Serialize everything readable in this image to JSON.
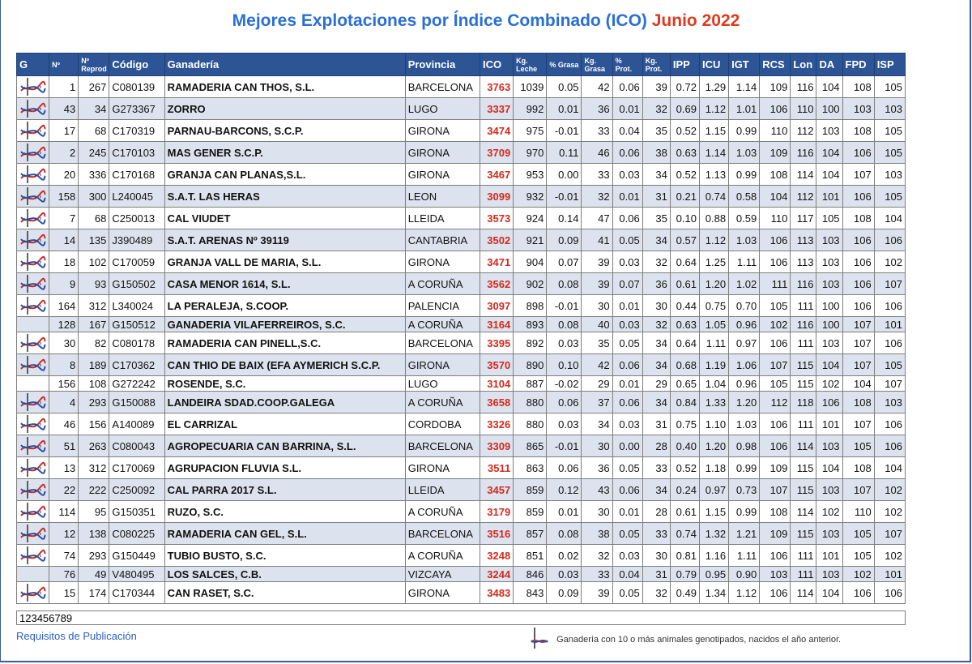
{
  "title": {
    "main": "Mejores Explotaciones por Índice Combinado (ICO)",
    "month": "Junio 2022"
  },
  "columns": [
    "G",
    "Nº",
    "Nº Reprod",
    "Código",
    "Ganadería",
    "Provincia",
    "ICO",
    "Kg. Leche",
    "% Grasa",
    "Kg. Grasa",
    "% Prot.",
    "Kg. Prot.",
    "IPP",
    "ICU",
    "IGT",
    "RCS",
    "Lon",
    "DA",
    "FPD",
    "ISP"
  ],
  "rows": [
    {
      "dna": true,
      "n": "1",
      "rep": "267",
      "cod": "C080139",
      "gan": "RAMADERIA CAN THOS, S.L.",
      "prov": "BARCELONA",
      "ico": "3763",
      "leche": "1039",
      "pg": "0.05",
      "kg": "42",
      "pp": "0.06",
      "kp": "39",
      "ipp": "0.72",
      "icu": "1.29",
      "igt": "1.14",
      "rcs": "109",
      "lon": "116",
      "da": "104",
      "fpd": "108",
      "isp": "105"
    },
    {
      "dna": true,
      "n": "43",
      "rep": "34",
      "cod": "G273367",
      "gan": "ZORRO",
      "prov": "LUGO",
      "ico": "3337",
      "leche": "992",
      "pg": "0.01",
      "kg": "36",
      "pp": "0.01",
      "kp": "32",
      "ipp": "0.69",
      "icu": "1.12",
      "igt": "1.01",
      "rcs": "106",
      "lon": "110",
      "da": "100",
      "fpd": "103",
      "isp": "103"
    },
    {
      "dna": true,
      "n": "17",
      "rep": "68",
      "cod": "C170319",
      "gan": "PARNAU-BARCONS, S.C.P.",
      "prov": "GIRONA",
      "ico": "3474",
      "leche": "975",
      "pg": "-0.01",
      "kg": "33",
      "pp": "0.04",
      "kp": "35",
      "ipp": "0.52",
      "icu": "1.15",
      "igt": "0.99",
      "rcs": "110",
      "lon": "112",
      "da": "103",
      "fpd": "108",
      "isp": "105"
    },
    {
      "dna": true,
      "n": "2",
      "rep": "245",
      "cod": "C170103",
      "gan": "MAS GENER S.C.P.",
      "prov": "GIRONA",
      "ico": "3709",
      "leche": "970",
      "pg": "0.11",
      "kg": "46",
      "pp": "0.06",
      "kp": "38",
      "ipp": "0.63",
      "icu": "1.14",
      "igt": "1.03",
      "rcs": "109",
      "lon": "116",
      "da": "104",
      "fpd": "106",
      "isp": "105"
    },
    {
      "dna": true,
      "n": "20",
      "rep": "336",
      "cod": "C170168",
      "gan": "GRANJA CAN PLANAS,S.L.",
      "prov": "GIRONA",
      "ico": "3467",
      "leche": "953",
      "pg": "0.00",
      "kg": "33",
      "pp": "0.03",
      "kp": "34",
      "ipp": "0.52",
      "icu": "1.13",
      "igt": "0.99",
      "rcs": "108",
      "lon": "114",
      "da": "104",
      "fpd": "107",
      "isp": "103"
    },
    {
      "dna": true,
      "n": "158",
      "rep": "300",
      "cod": "L240045",
      "gan": "S.A.T. LAS HERAS",
      "prov": "LEON",
      "ico": "3099",
      "leche": "932",
      "pg": "-0.01",
      "kg": "32",
      "pp": "0.01",
      "kp": "31",
      "ipp": "0.21",
      "icu": "0.74",
      "igt": "0.58",
      "rcs": "104",
      "lon": "112",
      "da": "101",
      "fpd": "106",
      "isp": "105"
    },
    {
      "dna": true,
      "n": "7",
      "rep": "68",
      "cod": "C250013",
      "gan": "CAL VIUDET",
      "prov": "LLEIDA",
      "ico": "3573",
      "leche": "924",
      "pg": "0.14",
      "kg": "47",
      "pp": "0.06",
      "kp": "35",
      "ipp": "0.10",
      "icu": "0.88",
      "igt": "0.59",
      "rcs": "110",
      "lon": "117",
      "da": "105",
      "fpd": "108",
      "isp": "104"
    },
    {
      "dna": true,
      "n": "14",
      "rep": "135",
      "cod": "J390489",
      "gan": "S.A.T. ARENAS Nº 39119",
      "prov": "CANTABRIA",
      "ico": "3502",
      "leche": "921",
      "pg": "0.09",
      "kg": "41",
      "pp": "0.05",
      "kp": "34",
      "ipp": "0.57",
      "icu": "1.12",
      "igt": "1.03",
      "rcs": "106",
      "lon": "113",
      "da": "103",
      "fpd": "106",
      "isp": "106"
    },
    {
      "dna": true,
      "n": "18",
      "rep": "102",
      "cod": "C170059",
      "gan": "GRANJA VALL DE MARIA, S.L.",
      "prov": "GIRONA",
      "ico": "3471",
      "leche": "904",
      "pg": "0.07",
      "kg": "39",
      "pp": "0.03",
      "kp": "32",
      "ipp": "0.64",
      "icu": "1.25",
      "igt": "1.11",
      "rcs": "106",
      "lon": "113",
      "da": "103",
      "fpd": "106",
      "isp": "102"
    },
    {
      "dna": true,
      "n": "9",
      "rep": "93",
      "cod": "G150502",
      "gan": "CASA MENOR 1614, S.L.",
      "prov": "A CORUÑA",
      "ico": "3562",
      "leche": "902",
      "pg": "0.08",
      "kg": "39",
      "pp": "0.07",
      "kp": "36",
      "ipp": "0.61",
      "icu": "1.20",
      "igt": "1.02",
      "rcs": "111",
      "lon": "116",
      "da": "103",
      "fpd": "106",
      "isp": "107"
    },
    {
      "dna": true,
      "n": "164",
      "rep": "312",
      "cod": "L340024",
      "gan": "LA PERALEJA, S.COOP.",
      "prov": "PALENCIA",
      "ico": "3097",
      "leche": "898",
      "pg": "-0.01",
      "kg": "30",
      "pp": "0.01",
      "kp": "30",
      "ipp": "0.44",
      "icu": "0.75",
      "igt": "0.70",
      "rcs": "105",
      "lon": "111",
      "da": "100",
      "fpd": "106",
      "isp": "106"
    },
    {
      "dna": false,
      "n": "128",
      "rep": "167",
      "cod": "G150512",
      "gan": "GANADERIA VILAFERREIROS, S.C.",
      "prov": "A CORUÑA",
      "ico": "3164",
      "leche": "893",
      "pg": "0.08",
      "kg": "40",
      "pp": "0.03",
      "kp": "32",
      "ipp": "0.63",
      "icu": "1.05",
      "igt": "0.96",
      "rcs": "102",
      "lon": "116",
      "da": "100",
      "fpd": "107",
      "isp": "101"
    },
    {
      "dna": true,
      "n": "30",
      "rep": "82",
      "cod": "C080178",
      "gan": "RAMADERIA CAN PINELL,S.C.",
      "prov": "BARCELONA",
      "ico": "3395",
      "leche": "892",
      "pg": "0.03",
      "kg": "35",
      "pp": "0.05",
      "kp": "34",
      "ipp": "0.64",
      "icu": "1.11",
      "igt": "0.97",
      "rcs": "106",
      "lon": "111",
      "da": "103",
      "fpd": "107",
      "isp": "106"
    },
    {
      "dna": true,
      "n": "8",
      "rep": "189",
      "cod": "C170362",
      "gan": "CAN THIO DE BAIX (EFA AYMERICH S.C.P.",
      "prov": "GIRONA",
      "ico": "3570",
      "leche": "890",
      "pg": "0.10",
      "kg": "42",
      "pp": "0.06",
      "kp": "34",
      "ipp": "0.68",
      "icu": "1.19",
      "igt": "1.06",
      "rcs": "107",
      "lon": "115",
      "da": "104",
      "fpd": "107",
      "isp": "105"
    },
    {
      "dna": false,
      "n": "156",
      "rep": "108",
      "cod": "G272242",
      "gan": "ROSENDE, S.C.",
      "prov": "LUGO",
      "ico": "3104",
      "leche": "887",
      "pg": "-0.02",
      "kg": "29",
      "pp": "0.01",
      "kp": "29",
      "ipp": "0.65",
      "icu": "1.04",
      "igt": "0.96",
      "rcs": "105",
      "lon": "115",
      "da": "102",
      "fpd": "104",
      "isp": "107"
    },
    {
      "dna": true,
      "n": "4",
      "rep": "293",
      "cod": "G150088",
      "gan": "LANDEIRA SDAD.COOP.GALEGA",
      "prov": "A CORUÑA",
      "ico": "3658",
      "leche": "880",
      "pg": "0.06",
      "kg": "37",
      "pp": "0.06",
      "kp": "34",
      "ipp": "0.84",
      "icu": "1.33",
      "igt": "1.20",
      "rcs": "112",
      "lon": "118",
      "da": "106",
      "fpd": "108",
      "isp": "103"
    },
    {
      "dna": true,
      "n": "46",
      "rep": "156",
      "cod": "A140089",
      "gan": "EL CARRIZAL",
      "prov": "CORDOBA",
      "ico": "3326",
      "leche": "880",
      "pg": "0.03",
      "kg": "34",
      "pp": "0.03",
      "kp": "31",
      "ipp": "0.75",
      "icu": "1.10",
      "igt": "1.03",
      "rcs": "106",
      "lon": "111",
      "da": "101",
      "fpd": "107",
      "isp": "106"
    },
    {
      "dna": true,
      "n": "51",
      "rep": "263",
      "cod": "C080043",
      "gan": "AGROPECUARIA CAN BARRINA, S.L.",
      "prov": "BARCELONA",
      "ico": "3309",
      "leche": "865",
      "pg": "-0.01",
      "kg": "30",
      "pp": "0.00",
      "kp": "28",
      "ipp": "0.40",
      "icu": "1.20",
      "igt": "0.98",
      "rcs": "106",
      "lon": "114",
      "da": "103",
      "fpd": "105",
      "isp": "106"
    },
    {
      "dna": true,
      "n": "13",
      "rep": "312",
      "cod": "C170069",
      "gan": "AGRUPACION FLUVIA S.L.",
      "prov": "GIRONA",
      "ico": "3511",
      "leche": "863",
      "pg": "0.06",
      "kg": "36",
      "pp": "0.05",
      "kp": "33",
      "ipp": "0.52",
      "icu": "1.18",
      "igt": "0.99",
      "rcs": "109",
      "lon": "115",
      "da": "104",
      "fpd": "108",
      "isp": "104"
    },
    {
      "dna": true,
      "n": "22",
      "rep": "222",
      "cod": "C250092",
      "gan": "CAL PARRA 2017 S.L.",
      "prov": "LLEIDA",
      "ico": "3457",
      "leche": "859",
      "pg": "0.12",
      "kg": "43",
      "pp": "0.06",
      "kp": "34",
      "ipp": "0.24",
      "icu": "0.97",
      "igt": "0.73",
      "rcs": "107",
      "lon": "115",
      "da": "103",
      "fpd": "107",
      "isp": "102"
    },
    {
      "dna": true,
      "n": "114",
      "rep": "95",
      "cod": "G150351",
      "gan": "RUZO, S.C.",
      "prov": "A CORUÑA",
      "ico": "3179",
      "leche": "859",
      "pg": "0.01",
      "kg": "30",
      "pp": "0.01",
      "kp": "28",
      "ipp": "0.61",
      "icu": "1.15",
      "igt": "0.99",
      "rcs": "108",
      "lon": "114",
      "da": "102",
      "fpd": "110",
      "isp": "102"
    },
    {
      "dna": true,
      "n": "12",
      "rep": "138",
      "cod": "C080225",
      "gan": "RAMADERIA CAN GEL, S.L.",
      "prov": "BARCELONA",
      "ico": "3516",
      "leche": "857",
      "pg": "0.08",
      "kg": "38",
      "pp": "0.05",
      "kp": "33",
      "ipp": "0.74",
      "icu": "1.32",
      "igt": "1.21",
      "rcs": "109",
      "lon": "115",
      "da": "103",
      "fpd": "105",
      "isp": "107"
    },
    {
      "dna": true,
      "n": "74",
      "rep": "293",
      "cod": "G150449",
      "gan": "TUBIO BUSTO, S.C.",
      "prov": "A CORUÑA",
      "ico": "3248",
      "leche": "851",
      "pg": "0.02",
      "kg": "32",
      "pp": "0.03",
      "kp": "30",
      "ipp": "0.81",
      "icu": "1.16",
      "igt": "1.11",
      "rcs": "106",
      "lon": "111",
      "da": "101",
      "fpd": "105",
      "isp": "102"
    },
    {
      "dna": false,
      "n": "76",
      "rep": "49",
      "cod": "V480495",
      "gan": "LOS SALCES, C.B.",
      "prov": "VIZCAYA",
      "ico": "3244",
      "leche": "846",
      "pg": "0.03",
      "kg": "33",
      "pp": "0.04",
      "kp": "31",
      "ipp": "0.79",
      "icu": "0.95",
      "igt": "0.90",
      "rcs": "103",
      "lon": "111",
      "da": "103",
      "fpd": "102",
      "isp": "101"
    },
    {
      "dna": true,
      "n": "15",
      "rep": "174",
      "cod": "C170344",
      "gan": "CAN RASET, S.C.",
      "prov": "GIRONA",
      "ico": "3483",
      "leche": "843",
      "pg": "0.09",
      "kg": "39",
      "pp": "0.05",
      "kp": "32",
      "ipp": "0.49",
      "icu": "1.34",
      "igt": "1.12",
      "rcs": "106",
      "lon": "114",
      "da": "104",
      "fpd": "106",
      "isp": "106"
    }
  ],
  "footer": {
    "numbers": "123456789",
    "link": "Requisitos de Publicación",
    "legend": "Ganadería con 10 o más animales genotipados, nacidos el año anterior."
  },
  "colors": {
    "title_blue": "#2a6fd6",
    "title_red": "#e03a1e",
    "header_bg": "#2d5595",
    "ico_red": "#d42a1c",
    "stripe": "#dde3ee"
  },
  "icons": {
    "dna": "dna-helix-icon"
  }
}
